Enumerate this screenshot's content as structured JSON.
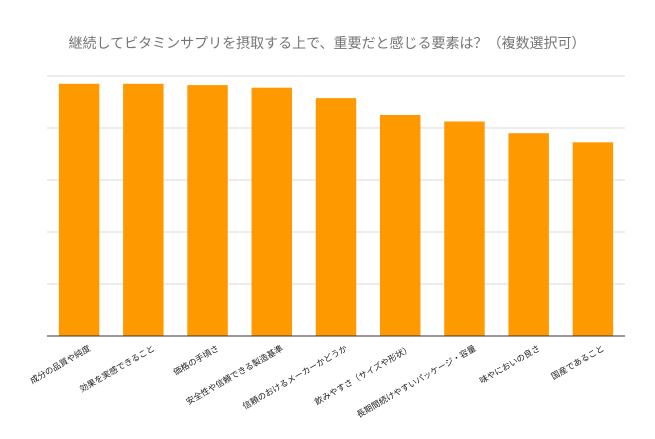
{
  "chart_data": {
    "type": "bar",
    "title": "継続してビタミンサプリを摂取する上で、重要だと感じる要素は？（複数選択可）",
    "categories": [
      "成分の品質や純度",
      "効果を実感できること",
      "価格の手頃さ",
      "安全性や信頼できる製造基準",
      "信頼のおけるメーカーかどうか",
      "飲みやすさ（サイズや形状）",
      "長期間続けやすいパッケージ・容量",
      "味やにおいの良さ",
      "国産であること"
    ],
    "values": [
      97,
      97,
      96.5,
      95.5,
      91.5,
      85,
      82.5,
      78,
      74.5
    ],
    "ylim": [
      0,
      100
    ],
    "gridlines": true,
    "xlabel": "",
    "ylabel": "",
    "colors": {
      "bar": "#ff9900",
      "grid": "#d9d9d9",
      "axis": "#333333",
      "title": "#757575"
    }
  }
}
